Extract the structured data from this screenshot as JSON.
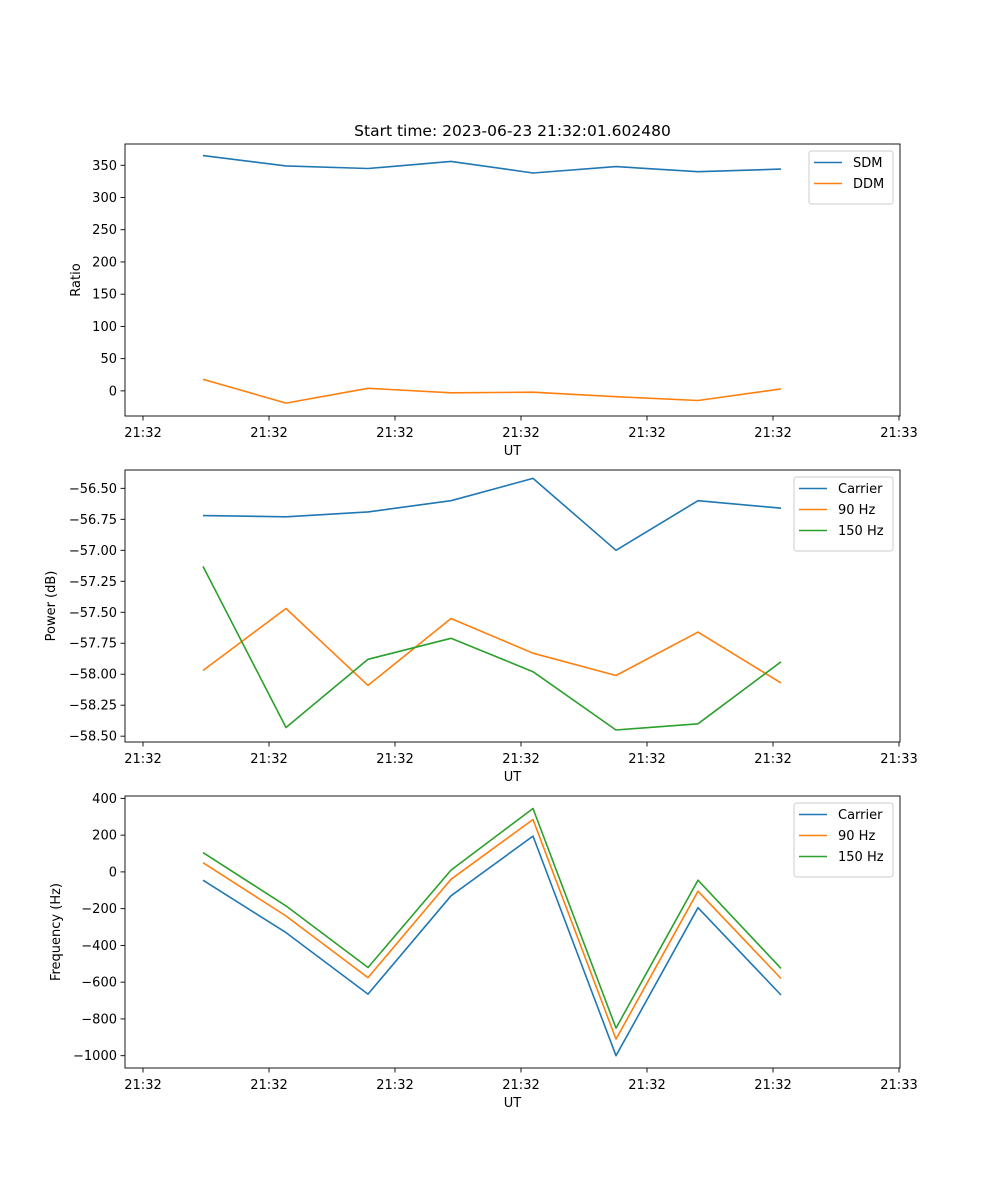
{
  "figure_title": "Start time: 2023-06-23 21:32:01.602480",
  "colors": {
    "blue": "#1f77b4",
    "orange": "#ff7f0e",
    "green": "#2ca02c"
  },
  "chart_data": [
    {
      "type": "line",
      "xlabel": "UT",
      "ylabel": "Ratio",
      "x_tick_labels": [
        "21:32",
        "21:32",
        "21:32",
        "21:32",
        "21:32",
        "21:32",
        "21:32"
      ],
      "x_last_tick_label": "21:33",
      "yticks": [
        0,
        50,
        100,
        150,
        200,
        250,
        300,
        350
      ],
      "y_tick_labels": [
        "0",
        "50",
        "100",
        "150",
        "200",
        "250",
        "300",
        "350"
      ],
      "ylim": [
        -39,
        383
      ],
      "legend_position": "top-right",
      "series": [
        {
          "name": "SDM",
          "color": "#1f77b4",
          "values": [
            365,
            349,
            345,
            356,
            338,
            348,
            340,
            344
          ]
        },
        {
          "name": "DDM",
          "color": "#ff7f0e",
          "values": [
            18,
            -19,
            4,
            -3,
            -2,
            -9,
            -15,
            3
          ]
        }
      ]
    },
    {
      "type": "line",
      "xlabel": "UT",
      "ylabel": "Power (dB)",
      "x_tick_labels": [
        "21:32",
        "21:32",
        "21:32",
        "21:32",
        "21:32",
        "21:32",
        "21:32"
      ],
      "x_last_tick_label": "21:33",
      "yticks": [
        -58.5,
        -58.25,
        -58.0,
        -57.75,
        -57.5,
        -57.25,
        -57.0,
        -56.75,
        -56.5
      ],
      "y_tick_labels": [
        "−58.50",
        "−58.25",
        "−58.00",
        "−57.75",
        "−57.50",
        "−57.25",
        "−57.00",
        "−56.75",
        "−56.50"
      ],
      "ylim": [
        -58.547,
        -56.352
      ],
      "legend_position": "top-right",
      "series": [
        {
          "name": "Carrier",
          "color": "#1f77b4",
          "values": [
            -56.72,
            -56.73,
            -56.69,
            -56.6,
            -56.42,
            -57.0,
            -56.6,
            -56.66
          ]
        },
        {
          "name": "90 Hz",
          "color": "#ff7f0e",
          "values": [
            -57.97,
            -57.47,
            -58.09,
            -57.55,
            -57.83,
            -58.01,
            -57.66,
            -58.07
          ]
        },
        {
          "name": "150 Hz",
          "color": "#2ca02c",
          "values": [
            -57.13,
            -58.43,
            -57.88,
            -57.71,
            -57.98,
            -58.45,
            -58.4,
            -57.9
          ]
        }
      ]
    },
    {
      "type": "line",
      "xlabel": "UT",
      "ylabel": "Frequency (Hz)",
      "x_tick_labels": [
        "21:32",
        "21:32",
        "21:32",
        "21:32",
        "21:32",
        "21:32",
        "21:32"
      ],
      "x_last_tick_label": "21:33",
      "yticks": [
        -1000,
        -800,
        -600,
        -400,
        -200,
        0,
        200,
        400
      ],
      "y_tick_labels": [
        "−1000",
        "−800",
        "−600",
        "−400",
        "−200",
        "0",
        "200",
        "400"
      ],
      "ylim": [
        -1067,
        413
      ],
      "legend_position": "top-right",
      "series": [
        {
          "name": "Carrier",
          "color": "#1f77b4",
          "values": [
            -45,
            -330,
            -665,
            -130,
            195,
            -1000,
            -195,
            -670
          ]
        },
        {
          "name": "90 Hz",
          "color": "#ff7f0e",
          "values": [
            50,
            -240,
            -575,
            -40,
            285,
            -910,
            -105,
            -580
          ]
        },
        {
          "name": "150 Hz",
          "color": "#2ca02c",
          "values": [
            105,
            -185,
            -520,
            10,
            345,
            -850,
            -45,
            -525
          ]
        }
      ]
    }
  ]
}
